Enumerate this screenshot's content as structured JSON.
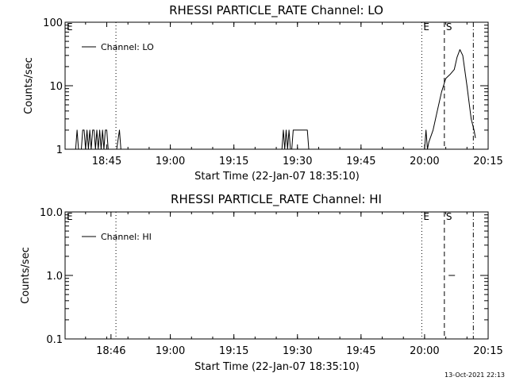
{
  "chart_data": [
    {
      "type": "line",
      "title": "RHESSI PARTICLE_RATE Channel: LO",
      "xlabel": "Start Time (22-Jan-07 18:35:10)",
      "ylabel": "Counts/sec",
      "yscale": "log",
      "xlim": [
        "18:35:10",
        "20:15:00"
      ],
      "ylim": [
        1,
        100
      ],
      "x_ticks": [
        "18:45",
        "19:00",
        "19:15",
        "19:30",
        "19:45",
        "20:00",
        "20:15"
      ],
      "y_ticks": [
        "1",
        "10",
        "100"
      ],
      "legend": {
        "entries": [
          "Channel: LO"
        ],
        "placement": "top-left"
      },
      "markers": [
        {
          "label": "E",
          "time": "18:35:10",
          "style": "dotted"
        },
        {
          "label": "",
          "time": "18:47:10",
          "style": "dotted"
        },
        {
          "label": "E",
          "time": "19:59:20",
          "style": "dotted"
        },
        {
          "label": "S",
          "time": "20:04:40",
          "style": "dashed"
        },
        {
          "label": "",
          "time": "20:11:30",
          "style": "dash-dot"
        }
      ],
      "series": [
        {
          "name": "Channel: LO",
          "x": [
            "18:37:40",
            "18:38:00",
            "18:38:20",
            "18:39:00",
            "18:39:20",
            "18:39:40",
            "18:40:00",
            "18:40:20",
            "18:40:40",
            "18:41:00",
            "18:41:20",
            "18:41:40",
            "18:42:00",
            "18:42:20",
            "18:42:40",
            "18:43:00",
            "18:43:20",
            "18:43:40",
            "18:44:00",
            "18:44:20",
            "18:44:40",
            "18:45:00",
            "18:45:20",
            "18:47:20",
            "18:48:00",
            "18:48:20",
            "19:26:20",
            "19:26:40",
            "19:27:00",
            "19:27:20",
            "19:27:40",
            "19:28:00",
            "19:28:20",
            "19:28:40",
            "19:29:00",
            "19:29:20",
            "19:29:40",
            "19:30:20",
            "19:32:20",
            "19:32:40",
            "20:00:00",
            "20:00:20",
            "20:00:40",
            "20:01:00",
            "20:02:00",
            "20:03:00",
            "20:04:00",
            "20:05:00",
            "20:06:00",
            "20:07:00",
            "20:07:40",
            "20:08:20",
            "20:09:00",
            "20:10:00",
            "20:11:00",
            "20:11:40",
            "20:12:00"
          ],
          "values": [
            1,
            2,
            1,
            1,
            2,
            2,
            1,
            2,
            1,
            2,
            1,
            2,
            2,
            1,
            2,
            1,
            2,
            1,
            2,
            1,
            2,
            2,
            1,
            1,
            2,
            1,
            1,
            2,
            1,
            2,
            1,
            2,
            1,
            1,
            2,
            2,
            2,
            2,
            2,
            1,
            1,
            2,
            1,
            1.3,
            2,
            4,
            8,
            13,
            15,
            18,
            28,
            37,
            30,
            10,
            3,
            2,
            1.5
          ]
        }
      ]
    },
    {
      "type": "line",
      "title": "RHESSI PARTICLE_RATE Channel: HI",
      "xlabel": "Start Time (22-Jan-07 18:35:10)",
      "ylabel": "Counts/sec",
      "yscale": "log",
      "xlim": [
        "18:35:10",
        "20:15:00"
      ],
      "ylim": [
        0.1,
        10
      ],
      "x_ticks": [
        "18:46",
        "19:00",
        "19:15",
        "19:30",
        "19:45",
        "20:00",
        "20:15"
      ],
      "y_ticks": [
        "0.1",
        "1.0",
        "10.0"
      ],
      "legend": {
        "entries": [
          "Channel: HI"
        ],
        "placement": "top-left"
      },
      "markers": [
        {
          "label": "E",
          "time": "18:35:10",
          "style": "dotted"
        },
        {
          "label": "",
          "time": "18:47:10",
          "style": "dotted"
        },
        {
          "label": "E",
          "time": "19:59:20",
          "style": "dotted"
        },
        {
          "label": "S",
          "time": "20:04:40",
          "style": "dashed"
        },
        {
          "label": "",
          "time": "20:11:30",
          "style": "dash-dot"
        }
      ],
      "series": [
        {
          "name": "Channel: HI",
          "x": [
            "20:05:40",
            "20:07:10"
          ],
          "values": [
            1,
            1
          ]
        }
      ]
    }
  ],
  "footer": {
    "timestamp": "13-Oct-2021 22:13"
  }
}
